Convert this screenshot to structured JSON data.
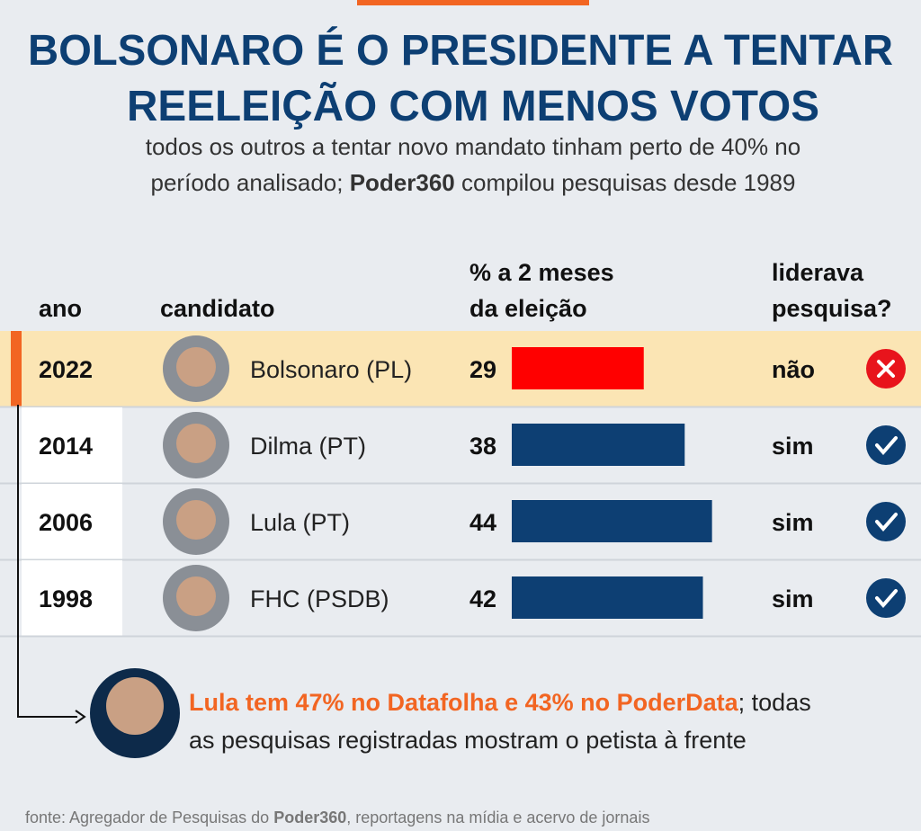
{
  "chart_data": {
    "type": "bar",
    "title": [
      "BOLSONARO É O PRESIDENTE A TENTAR",
      "REELEIÇÃO COM MENOS VOTOS"
    ],
    "subtitle": [
      "todos os outros a tentar novo mandato tinham perto de 40% no",
      "período analisado; ",
      "Poder360",
      " compilou pesquisas desde 1989"
    ],
    "columns": {
      "year": "ano",
      "candidate": "candidato",
      "value": [
        "% a 2 meses",
        "da eleição"
      ],
      "lead": [
        "liderava",
        "pesquisa?"
      ]
    },
    "categories": [
      "2022",
      "2014",
      "2006",
      "1998"
    ],
    "candidates": [
      "Bolsonaro (PL)",
      "Dilma (PT)",
      "Lula (PT)",
      "FHC (PSDB)"
    ],
    "values": [
      29,
      38,
      44,
      42
    ],
    "colors": [
      "#ff0000",
      "#0d3f73",
      "#0d3f73",
      "#0d3f73"
    ],
    "lead": [
      "não",
      "sim",
      "sim",
      "sim"
    ],
    "xlim": [
      0,
      50
    ],
    "note": [
      "Lula tem 47% no Datafolha e 43% no PoderData",
      "; todas",
      "as pesquisas registradas mostram o petista à frente"
    ],
    "source": [
      "fonte: Agregador de Pesquisas do ",
      "Poder360",
      ", reportagens na mídia e acervo de jornais"
    ]
  }
}
